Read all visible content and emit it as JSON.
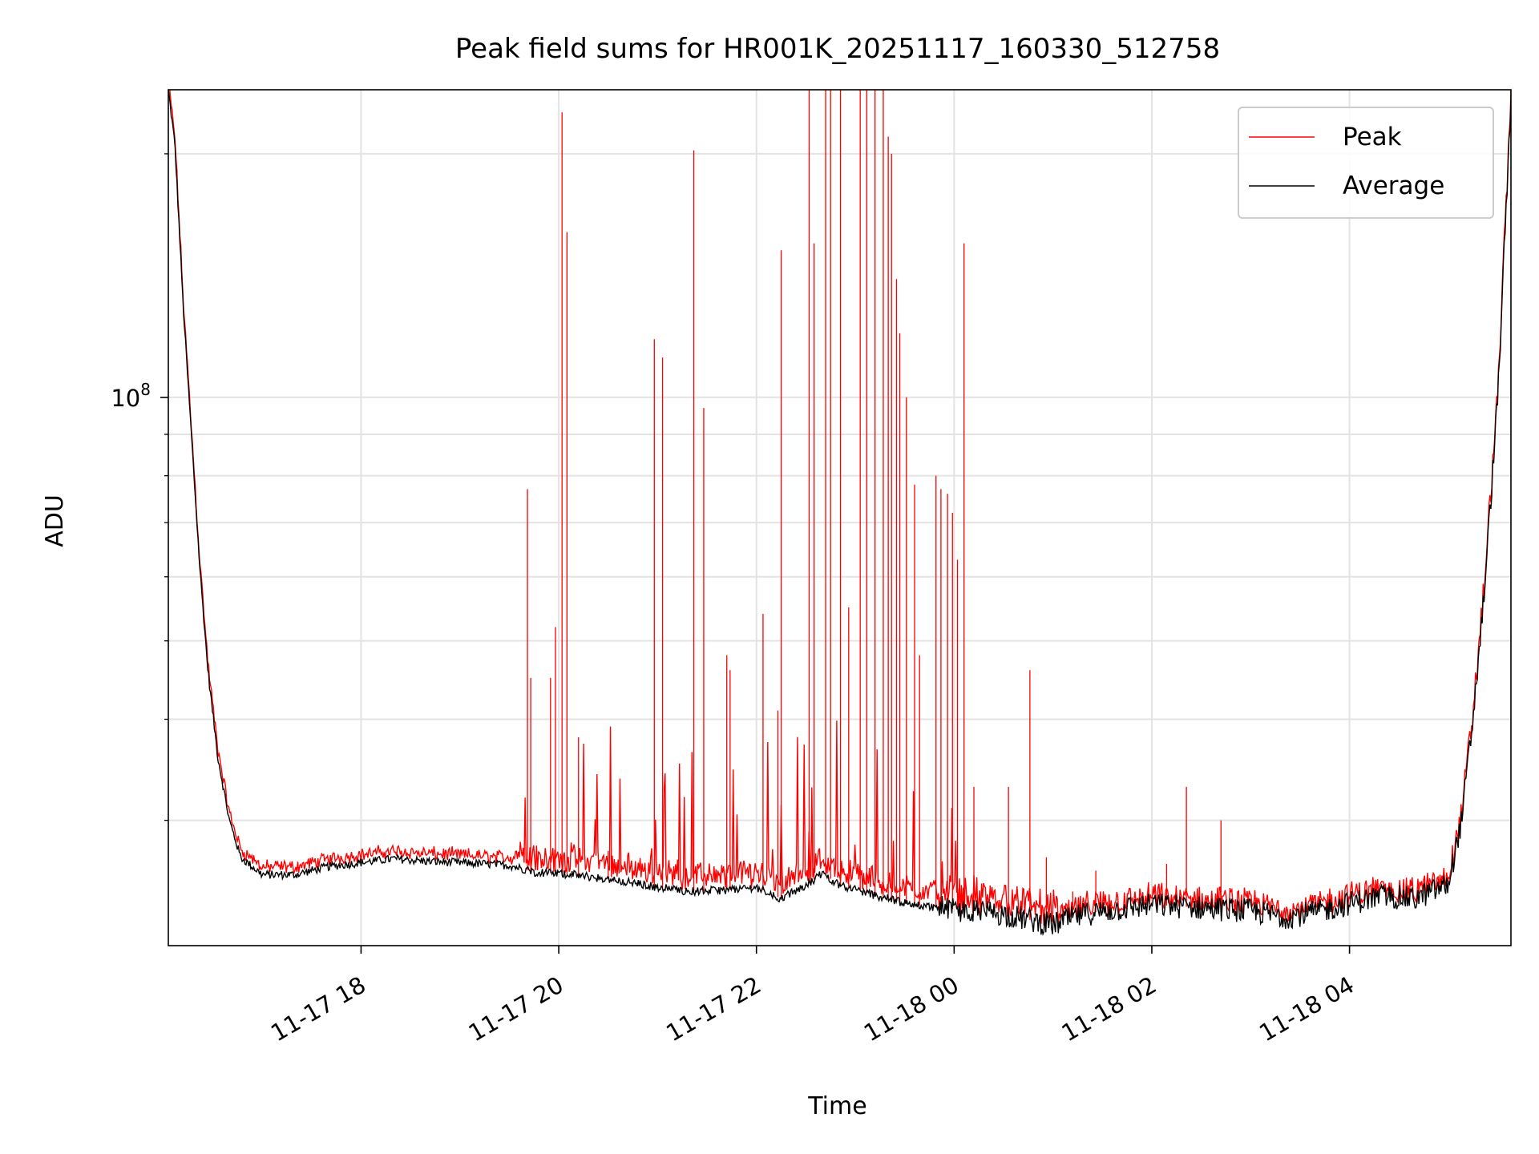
{
  "chart_data": {
    "type": "line",
    "title": "Peak field sums for HR001K_20251117_160330_512758",
    "xlabel": "Time",
    "ylabel": "ADU",
    "yscale": "log",
    "ylim": [
      21000000,
      240000000
    ],
    "xlim": [
      "2025-11-17T16:03",
      "2025-11-18T05:38"
    ],
    "x_ticks": [
      {
        "t": "2025-11-17T18:00",
        "label": "11-17 18"
      },
      {
        "t": "2025-11-17T20:00",
        "label": "11-17 20"
      },
      {
        "t": "2025-11-17T22:00",
        "label": "11-17 22"
      },
      {
        "t": "2025-11-18T00:00",
        "label": "11-18 00"
      },
      {
        "t": "2025-11-18T02:00",
        "label": "11-18 02"
      },
      {
        "t": "2025-11-18T04:00",
        "label": "11-18 04"
      }
    ],
    "y_ticks": [
      {
        "value": 100000000,
        "label": "10^8"
      }
    ],
    "grid": true,
    "legend_position": "top-right",
    "colors": {
      "peak": "#ff0000",
      "average": "#000000",
      "grid": "#e3e3e3"
    },
    "series": [
      {
        "name": "Average",
        "points": [
          [
            "2025-11-17T16:03",
            240000000
          ],
          [
            "2025-11-17T16:07",
            205000000
          ],
          [
            "2025-11-17T16:12",
            130000000
          ],
          [
            "2025-11-17T16:17",
            90000000
          ],
          [
            "2025-11-17T16:22",
            62000000
          ],
          [
            "2025-11-17T16:27",
            46000000
          ],
          [
            "2025-11-17T16:33",
            36000000
          ],
          [
            "2025-11-17T16:40",
            30000000
          ],
          [
            "2025-11-17T16:47",
            27000000
          ],
          [
            "2025-11-17T17:00",
            25700000
          ],
          [
            "2025-11-17T17:20",
            25700000
          ],
          [
            "2025-11-17T17:40",
            26300000
          ],
          [
            "2025-11-17T18:00",
            26600000
          ],
          [
            "2025-11-17T18:20",
            26900000
          ],
          [
            "2025-11-17T18:40",
            26700000
          ],
          [
            "2025-11-17T19:00",
            26600000
          ],
          [
            "2025-11-17T19:30",
            26400000
          ],
          [
            "2025-11-17T19:45",
            25900000
          ],
          [
            "2025-11-17T20:10",
            25700000
          ],
          [
            "2025-11-17T20:40",
            25200000
          ],
          [
            "2025-11-17T21:00",
            24800000
          ],
          [
            "2025-11-17T21:20",
            24500000
          ],
          [
            "2025-11-17T21:40",
            24600000
          ],
          [
            "2025-11-17T22:00",
            24800000
          ],
          [
            "2025-11-17T22:15",
            24000000
          ],
          [
            "2025-11-17T22:30",
            24900000
          ],
          [
            "2025-11-17T22:40",
            25800000
          ],
          [
            "2025-11-17T22:50",
            25000000
          ],
          [
            "2025-11-17T23:10",
            24300000
          ],
          [
            "2025-11-17T23:30",
            23700000
          ],
          [
            "2025-11-17T23:50",
            23400000
          ],
          [
            "2025-11-18T00:10",
            23200000
          ],
          [
            "2025-11-18T00:30",
            23000000
          ],
          [
            "2025-11-18T00:50",
            22500000
          ],
          [
            "2025-11-18T01:00",
            22300000
          ],
          [
            "2025-11-18T01:20",
            23000000
          ],
          [
            "2025-11-18T01:40",
            23300000
          ],
          [
            "2025-11-18T02:00",
            23600000
          ],
          [
            "2025-11-18T02:30",
            23400000
          ],
          [
            "2025-11-18T03:00",
            23200000
          ],
          [
            "2025-11-18T03:20",
            22800000
          ],
          [
            "2025-11-18T03:40",
            23100000
          ],
          [
            "2025-11-18T04:00",
            23700000
          ],
          [
            "2025-11-18T04:20",
            24200000
          ],
          [
            "2025-11-18T04:40",
            24000000
          ],
          [
            "2025-11-18T05:00",
            25000000
          ],
          [
            "2025-11-18T05:08",
            30000000
          ],
          [
            "2025-11-18T05:15",
            40000000
          ],
          [
            "2025-11-18T05:22",
            58000000
          ],
          [
            "2025-11-18T05:30",
            100000000
          ],
          [
            "2025-11-18T05:38",
            230000000
          ]
        ]
      },
      {
        "name": "Peak",
        "spikes": [
          [
            "2025-11-17T19:41",
            77000000
          ],
          [
            "2025-11-17T19:43",
            45000000
          ],
          [
            "2025-11-17T19:55",
            45000000
          ],
          [
            "2025-11-17T19:58",
            52000000
          ],
          [
            "2025-11-17T20:02",
            225000000
          ],
          [
            "2025-11-17T20:05",
            160000000
          ],
          [
            "2025-11-17T20:12",
            38000000
          ],
          [
            "2025-11-17T20:30",
            27500000
          ],
          [
            "2025-11-17T20:58",
            118000000
          ],
          [
            "2025-11-17T21:03",
            112000000
          ],
          [
            "2025-11-17T21:22",
            202000000
          ],
          [
            "2025-11-17T21:28",
            97000000
          ],
          [
            "2025-11-17T21:42",
            48000000
          ],
          [
            "2025-11-17T21:44",
            46000000
          ],
          [
            "2025-11-17T22:04",
            54000000
          ],
          [
            "2025-11-17T22:13",
            41000000
          ],
          [
            "2025-11-17T22:15",
            152000000
          ],
          [
            "2025-11-17T22:32",
            240000000
          ],
          [
            "2025-11-17T22:35",
            155000000
          ],
          [
            "2025-11-17T22:42",
            240000000
          ],
          [
            "2025-11-17T22:45",
            240000000
          ],
          [
            "2025-11-17T22:51",
            240000000
          ],
          [
            "2025-11-17T22:56",
            55000000
          ],
          [
            "2025-11-17T23:03",
            240000000
          ],
          [
            "2025-11-17T23:07",
            240000000
          ],
          [
            "2025-11-17T23:12",
            240000000
          ],
          [
            "2025-11-17T23:17",
            240000000
          ],
          [
            "2025-11-17T23:20",
            210000000
          ],
          [
            "2025-11-17T23:22",
            200000000
          ],
          [
            "2025-11-17T23:25",
            140000000
          ],
          [
            "2025-11-17T23:27",
            120000000
          ],
          [
            "2025-11-17T23:31",
            100000000
          ],
          [
            "2025-11-17T23:36",
            78000000
          ],
          [
            "2025-11-17T23:39",
            48000000
          ],
          [
            "2025-11-17T23:49",
            80000000
          ],
          [
            "2025-11-17T23:52",
            77000000
          ],
          [
            "2025-11-17T23:56",
            76000000
          ],
          [
            "2025-11-17T23:59",
            72000000
          ],
          [
            "2025-11-18T00:02",
            63000000
          ],
          [
            "2025-11-18T00:06",
            155000000
          ],
          [
            "2025-11-18T00:12",
            33000000
          ],
          [
            "2025-11-18T00:33",
            33000000
          ],
          [
            "2025-11-18T00:46",
            46000000
          ],
          [
            "2025-11-18T00:56",
            27000000
          ],
          [
            "2025-11-18T01:12",
            24500000
          ],
          [
            "2025-11-18T01:26",
            26000000
          ],
          [
            "2025-11-18T02:09",
            26500000
          ],
          [
            "2025-11-18T02:21",
            33000000
          ],
          [
            "2025-11-18T02:42",
            30000000
          ]
        ]
      }
    ]
  }
}
